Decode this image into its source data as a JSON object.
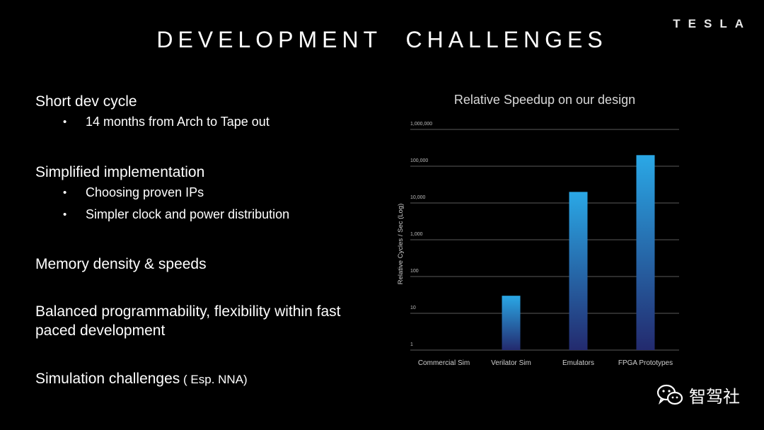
{
  "slide": {
    "title": "DEVELOPMENT  CHALLENGES",
    "brand": "TESLA",
    "bullets": [
      {
        "text": "Short dev cycle",
        "subs": [
          "14 months from Arch to Tape out"
        ]
      },
      {
        "text": "Simplified implementation",
        "subs": [
          "Choosing proven IPs",
          "Simpler clock and power distribution"
        ]
      },
      {
        "text": "Memory density &  speeds",
        "subs": []
      },
      {
        "text": "Balanced programmability, flexibility within fast paced development",
        "subs": []
      },
      {
        "text": "Simulation challenges",
        "suffix": " ( Esp. NNA)",
        "subs": []
      }
    ],
    "watermark": {
      "text": "智驾社",
      "icon": "wechat-icon"
    }
  },
  "chart_data": {
    "type": "bar",
    "title": "Relative Speedup on our design",
    "ylabel": "Relative Cycles / Sec (Log)",
    "xlabel": "",
    "yscale": "log",
    "ylim": [
      1,
      1000000
    ],
    "yticks": [
      "1",
      "10",
      "100",
      "1,000",
      "10,000",
      "100,000",
      "1,000,000"
    ],
    "categories": [
      "Commercial Sim",
      "Verilator Sim",
      "Emulators",
      "FPGA Prototypes"
    ],
    "values": [
      1,
      30,
      20000,
      200000
    ],
    "grid": true,
    "colors": {
      "bar_top": "#2aa8e6",
      "bar_bottom": "#232a6e",
      "grid": "#5a5a5a"
    }
  }
}
